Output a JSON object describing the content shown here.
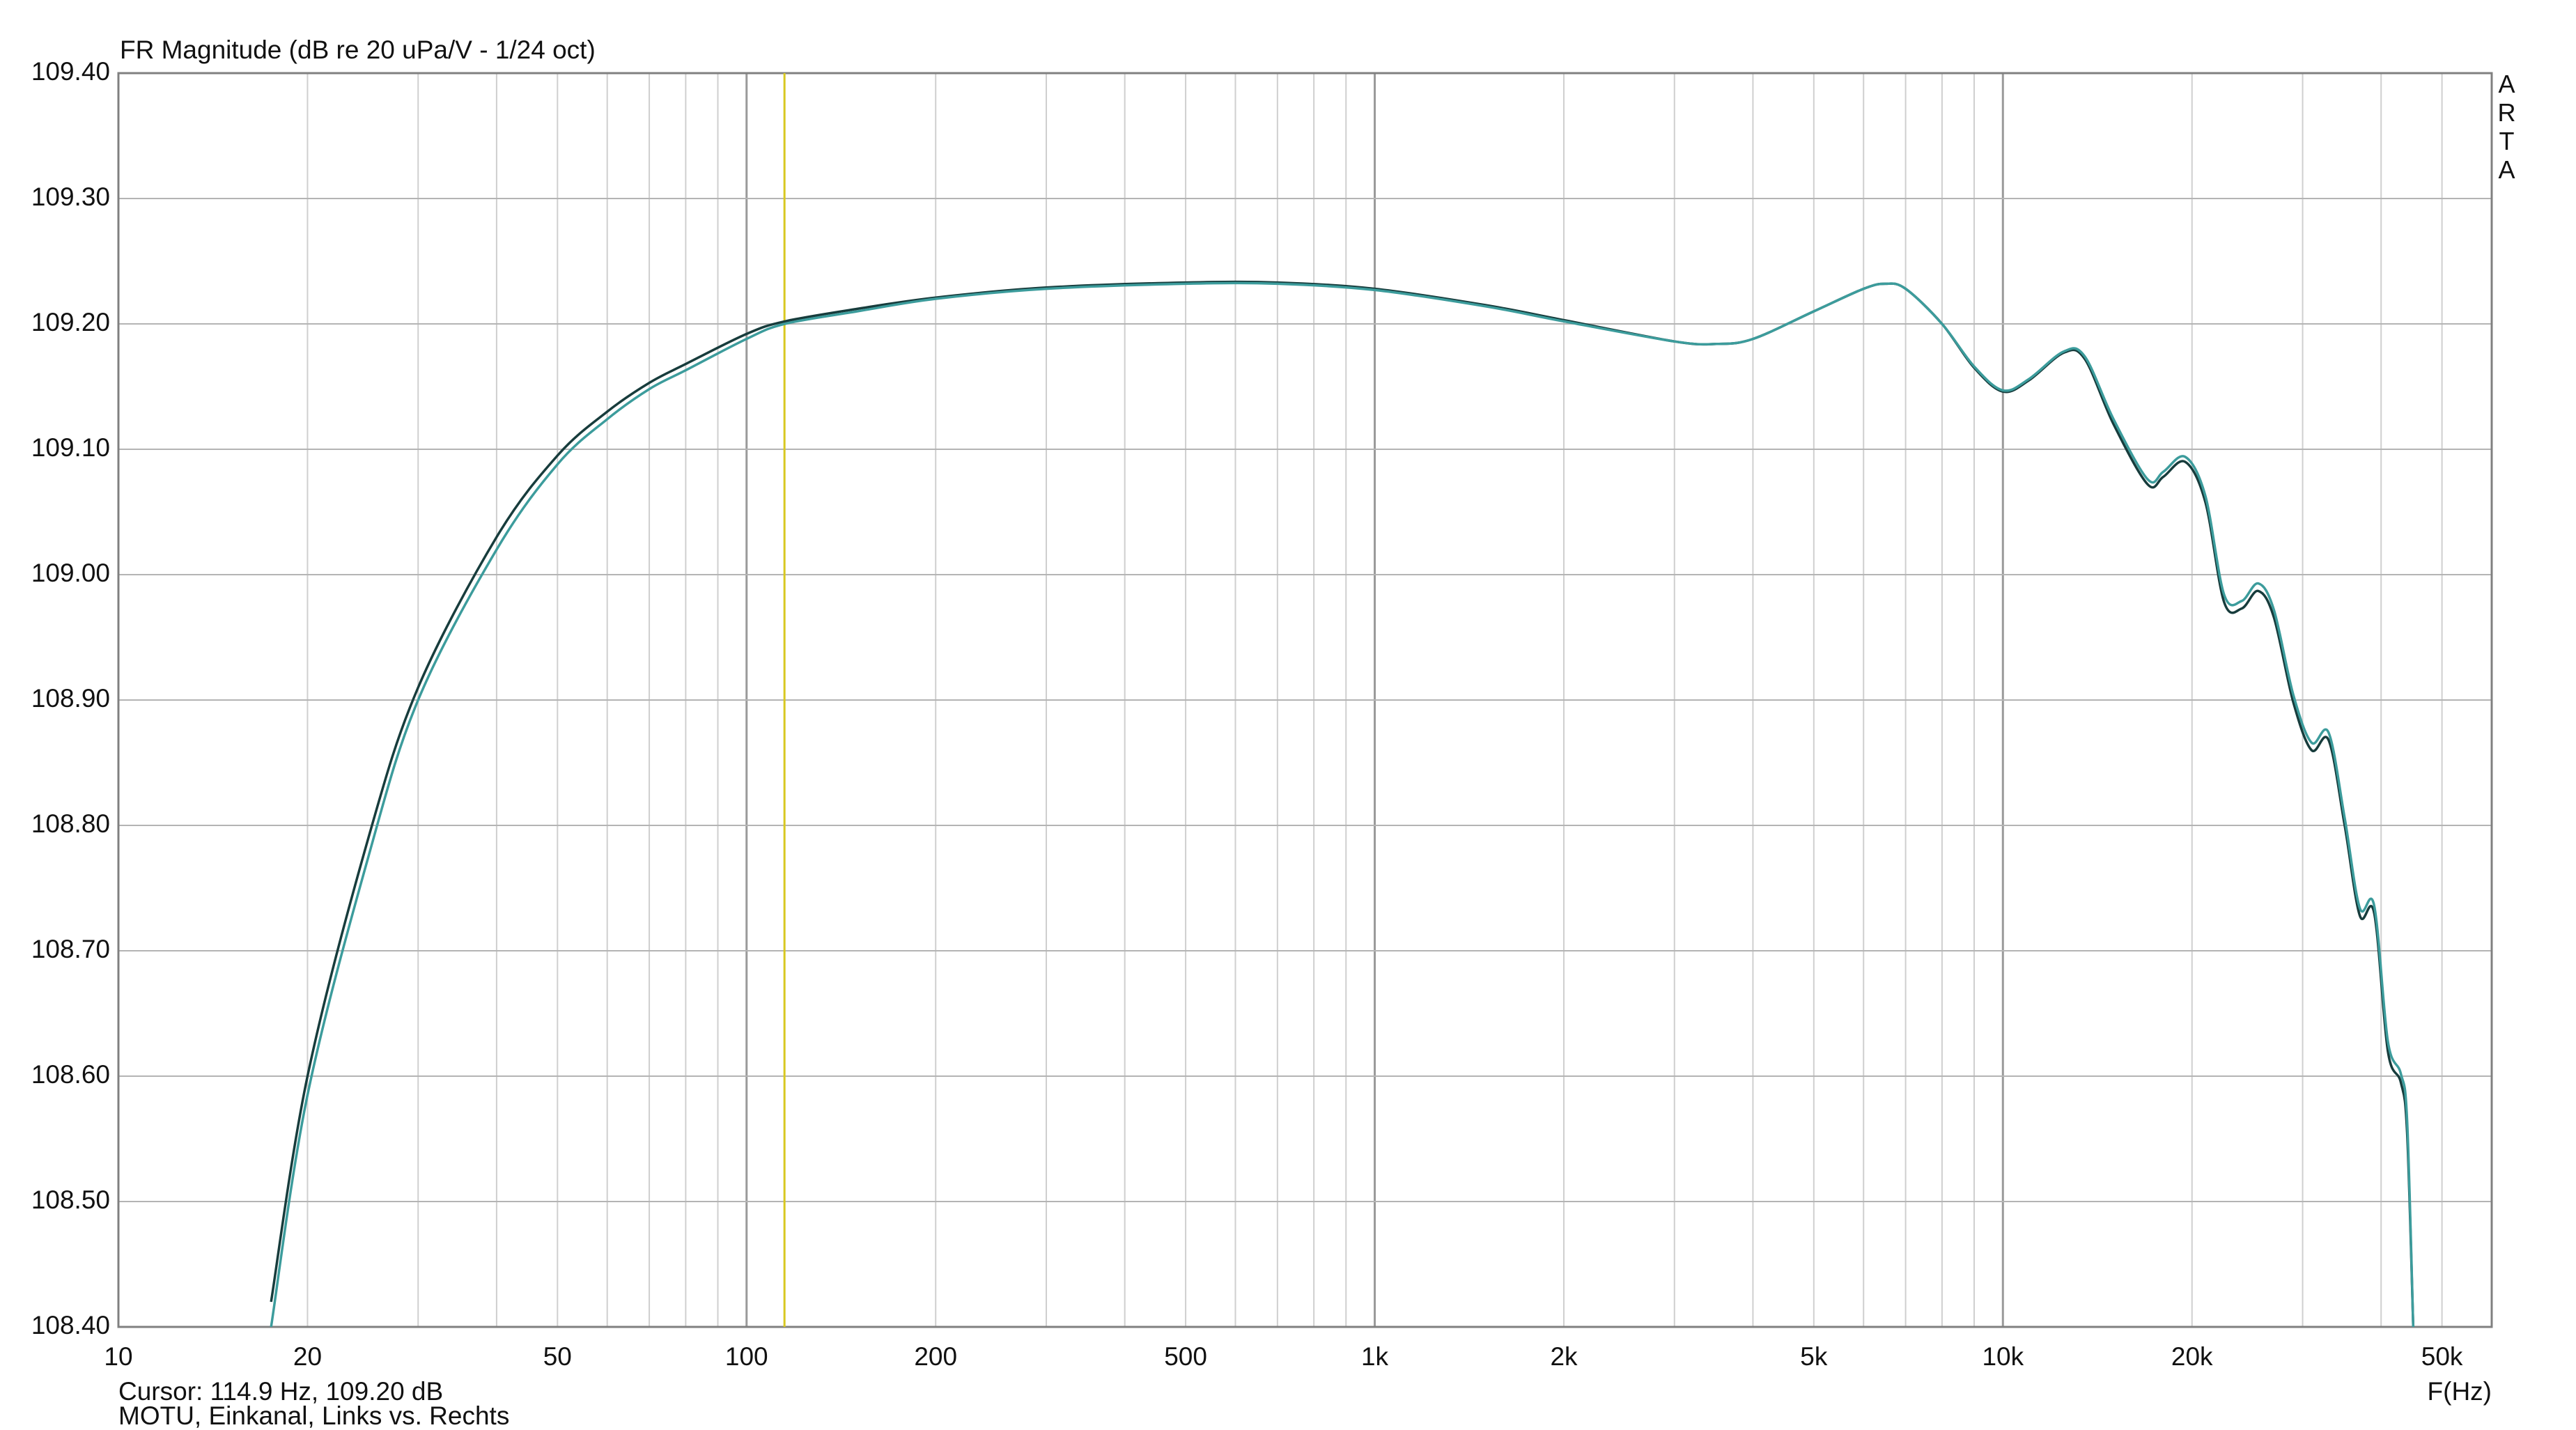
{
  "chart_data": {
    "type": "line",
    "title": "FR Magnitude (dB re 20 uPa/V - 1/24 oct)",
    "x_label": "F(Hz)",
    "cursor": {
      "x": 114.9,
      "color": "#d8c820",
      "label": "Cursor: 114.9 Hz, 109.20 dB"
    },
    "footer": "MOTU, Einkanal, Links vs. Rechts",
    "watermark": "ARTA",
    "x_log": true,
    "grid": true,
    "xlim": [
      10,
      60000
    ],
    "ylim": [
      108.4,
      109.4
    ],
    "xticks": [
      10,
      20,
      {
        "value": 30,
        "label": null
      },
      {
        "value": 40,
        "label": null
      },
      50,
      {
        "value": 60,
        "label": null
      },
      {
        "value": 70,
        "label": null
      },
      {
        "value": 80,
        "label": null
      },
      {
        "value": 90,
        "label": null
      },
      100,
      200,
      {
        "value": 300,
        "label": null
      },
      {
        "value": 400,
        "label": null
      },
      500,
      {
        "value": 600,
        "label": null
      },
      {
        "value": 700,
        "label": null
      },
      {
        "value": 800,
        "label": null
      },
      {
        "value": 900,
        "label": null
      },
      {
        "value": 1000,
        "label": "1k"
      },
      {
        "value": 2000,
        "label": "2k"
      },
      {
        "value": 3000,
        "label": null
      },
      {
        "value": 4000,
        "label": null
      },
      {
        "value": 5000,
        "label": "5k"
      },
      {
        "value": 6000,
        "label": null
      },
      {
        "value": 7000,
        "label": null
      },
      {
        "value": 8000,
        "label": null
      },
      {
        "value": 9000,
        "label": null
      },
      {
        "value": 10000,
        "label": "10k"
      },
      {
        "value": 20000,
        "label": "20k"
      },
      {
        "value": 30000,
        "label": null
      },
      {
        "value": 40000,
        "label": null
      },
      {
        "value": 50000,
        "label": "50k"
      }
    ],
    "yticks": [
      {
        "value": 108.4,
        "label": "108.40"
      },
      {
        "value": 108.5,
        "label": "108.50"
      },
      {
        "value": 108.6,
        "label": "108.60"
      },
      {
        "value": 108.7,
        "label": "108.70"
      },
      {
        "value": 108.8,
        "label": "108.80"
      },
      {
        "value": 108.9,
        "label": "108.90"
      },
      {
        "value": 109.0,
        "label": "109.00"
      },
      {
        "value": 109.1,
        "label": "109.10"
      },
      {
        "value": 109.2,
        "label": "109.20"
      },
      {
        "value": 109.3,
        "label": "109.30"
      },
      {
        "value": 109.4,
        "label": "109.40"
      }
    ],
    "x": [
      17.5,
      20,
      25,
      30,
      40,
      50,
      60,
      70,
      80,
      100,
      115,
      150,
      200,
      300,
      500,
      700,
      1000,
      1500,
      2000,
      3000,
      3500,
      4000,
      5000,
      6000,
      6500,
      7000,
      8000,
      9000,
      10000,
      11000,
      12500,
      13500,
      15000,
      17000,
      18000,
      19500,
      21000,
      22500,
      24000,
      25500,
      27000,
      29000,
      31000,
      33000,
      35000,
      37000,
      39000,
      41000,
      43000,
      44000,
      45000
    ],
    "series": [
      {
        "name": "Links",
        "color": "#173c3c",
        "values": [
          108.42,
          108.6,
          108.79,
          108.91,
          109.03,
          109.095,
          109.13,
          109.153,
          109.168,
          109.192,
          109.202,
          109.212,
          109.221,
          109.229,
          109.233,
          109.233,
          109.228,
          109.215,
          109.203,
          109.186,
          109.184,
          109.188,
          109.21,
          109.228,
          109.232,
          109.228,
          109.2,
          109.165,
          109.146,
          109.155,
          109.177,
          109.172,
          109.12,
          109.072,
          109.078,
          109.09,
          109.058,
          108.978,
          108.973,
          108.987,
          108.966,
          108.898,
          108.86,
          108.868,
          108.8,
          108.728,
          108.73,
          108.62,
          108.595,
          108.555,
          108.4
        ]
      },
      {
        "name": "Rechts",
        "color": "#3c9c9c",
        "values": [
          108.4,
          108.585,
          108.775,
          108.9,
          109.02,
          109.088,
          109.124,
          109.148,
          109.163,
          109.188,
          109.2,
          109.21,
          109.22,
          109.228,
          109.232,
          109.232,
          109.227,
          109.214,
          109.202,
          109.186,
          109.184,
          109.188,
          109.21,
          109.228,
          109.232,
          109.228,
          109.2,
          109.166,
          109.147,
          109.156,
          109.178,
          109.174,
          109.124,
          109.076,
          109.082,
          109.094,
          109.063,
          108.984,
          108.979,
          108.993,
          108.972,
          108.904,
          108.866,
          108.874,
          108.806,
          108.734,
          108.736,
          108.628,
          108.602,
          108.565,
          108.4
        ]
      }
    ]
  }
}
